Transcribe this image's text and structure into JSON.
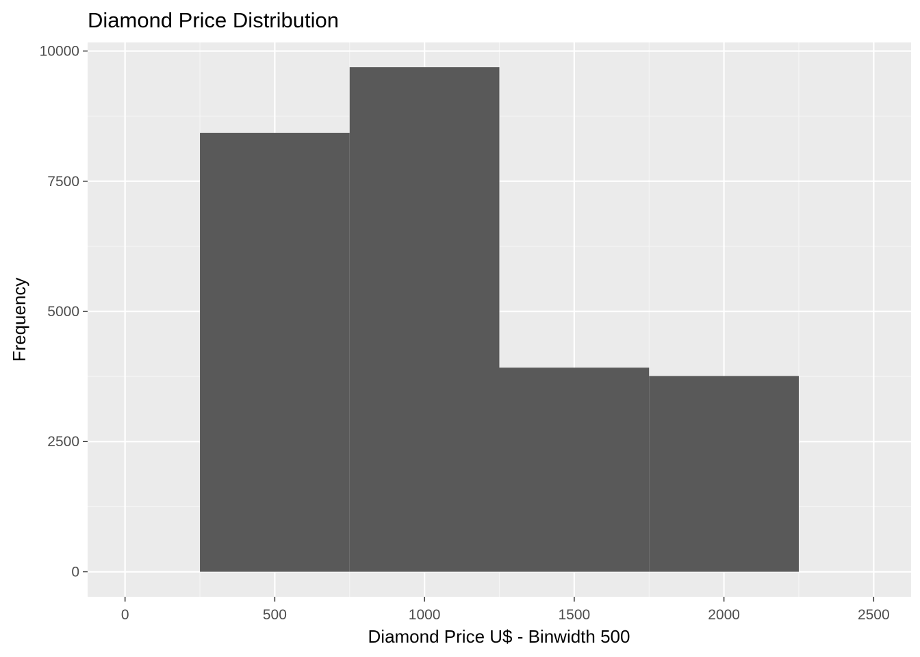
{
  "chart_data": {
    "type": "bar",
    "title": "Diamond Price Distribution",
    "xlabel": "Diamond Price U$ - Binwidth 500",
    "ylabel": "Frequency",
    "binwidth": 500,
    "bins": [
      {
        "x_start": 250,
        "x_end": 750,
        "value": 8430
      },
      {
        "x_start": 750,
        "x_end": 1250,
        "value": 9690
      },
      {
        "x_start": 1250,
        "x_end": 1750,
        "value": 3920
      },
      {
        "x_start": 1750,
        "x_end": 2250,
        "value": 3760
      }
    ],
    "xlim": [
      -125,
      2625
    ],
    "ylim": [
      -480,
      10165
    ],
    "x_ticks": [
      0,
      500,
      1000,
      1500,
      2000,
      2500
    ],
    "x_tick_labels": [
      "0",
      "500",
      "1000",
      "1500",
      "2000",
      "2500"
    ],
    "y_ticks": [
      0,
      2500,
      5000,
      7500,
      10000
    ],
    "y_tick_labels": [
      "0",
      "2500",
      "5000",
      "7500",
      "10000"
    ],
    "grid": true,
    "legend": "none"
  },
  "colors": {
    "panel_background": "#ebebeb",
    "grid_major": "#ffffff",
    "grid_minor": "#f5f5f5",
    "bar_fill": "#595959",
    "tick_mark": "#333333",
    "tick_label": "#4d4d4d"
  }
}
